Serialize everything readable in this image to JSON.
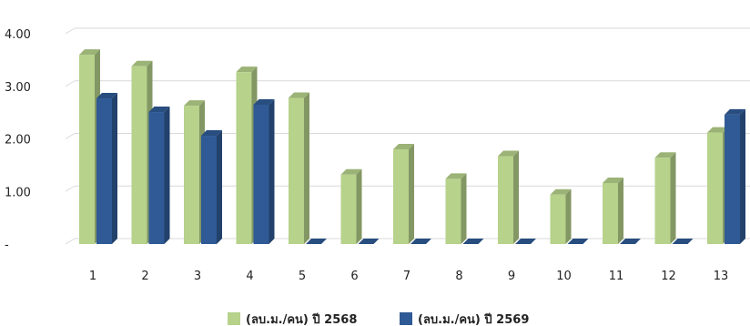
{
  "chart_data": {
    "type": "bar",
    "categories": [
      "1",
      "2",
      "3",
      "4",
      "5",
      "6",
      "7",
      "8",
      "9",
      "10",
      "11",
      "12",
      "13"
    ],
    "series": [
      {
        "name": "(ลบ.ม./คน) ปี 2568",
        "color": "#b6d28b",
        "values": [
          3.6,
          3.38,
          2.63,
          3.27,
          2.78,
          1.32,
          1.8,
          1.24,
          1.67,
          0.94,
          1.16,
          1.64,
          2.12
        ]
      },
      {
        "name": "(ลบ.ม./คน) ปี 2569",
        "color": "#2f5a95",
        "values": [
          2.77,
          2.51,
          2.06,
          2.65,
          0,
          0,
          0,
          0,
          0,
          0,
          0,
          0,
          2.46
        ]
      }
    ],
    "yticks": [
      "-",
      "1.00",
      "2.00",
      "3.00",
      "4.00"
    ],
    "ylim": [
      0,
      4
    ],
    "grid": true,
    "legend_position": "bottom",
    "style": "3d-column"
  }
}
